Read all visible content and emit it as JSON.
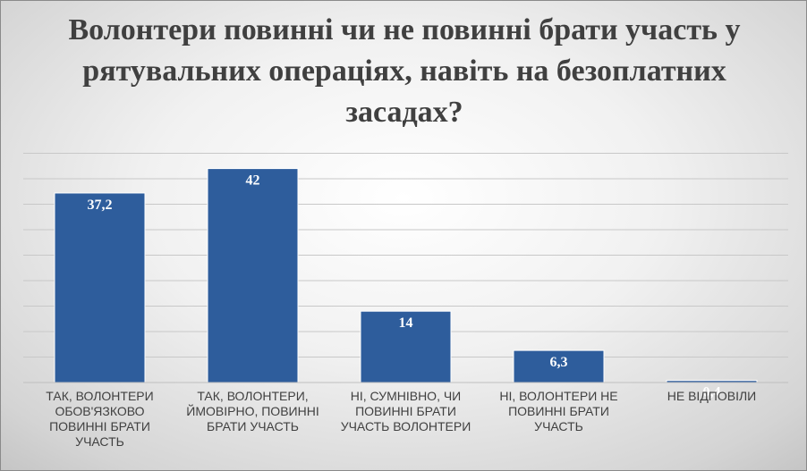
{
  "chart_data": {
    "type": "bar",
    "title": "Волонтери повинні чи не повинні брати участь у рятувальних операціях, навіть на безоплатних засадах?",
    "categories": [
      "ТАК, ВОЛОНТЕРИ ОБОВ'ЯЗКОВО ПОВИННІ БРАТИ УЧАСТЬ",
      "ТАК, ВОЛОНТЕРИ, ЙМОВІРНО, ПОВИННІ БРАТИ УЧАСТЬ",
      "НІ, СУМНІВНО, ЧИ ПОВИННІ БРАТИ УЧАСТЬ ВОЛОНТЕРИ",
      "НІ, ВОЛОНТЕРИ НЕ ПОВИННІ БРАТИ УЧАСТЬ",
      "НЕ ВІДПОВІЛИ"
    ],
    "values": [
      37.2,
      42,
      14,
      6.3,
      0.4
    ],
    "value_labels": [
      "37,2",
      "42",
      "14",
      "6,3",
      "0,4"
    ],
    "ylim": [
      0,
      45
    ],
    "grid": true,
    "bar_color": "#2e5d9c",
    "xlabel": "",
    "ylabel": ""
  }
}
